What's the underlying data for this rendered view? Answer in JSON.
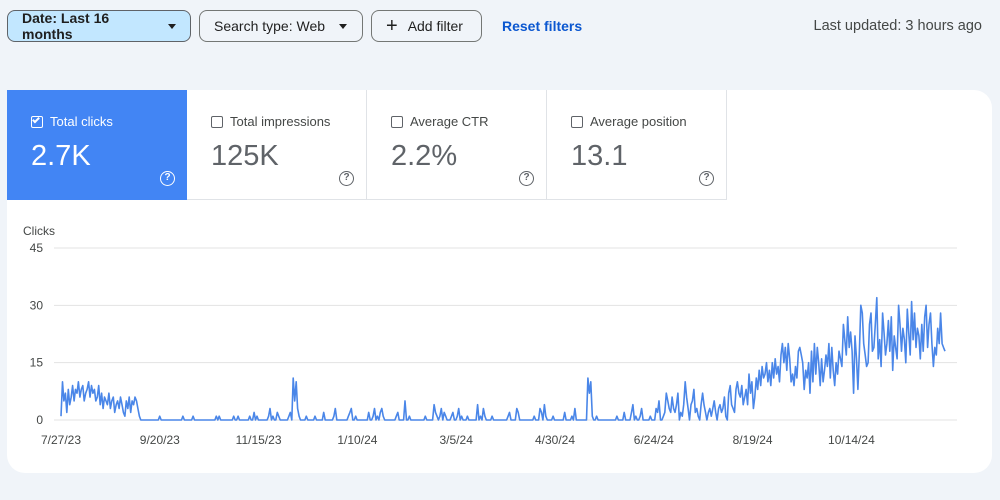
{
  "filters": {
    "date_label": "Date: Last 16 months",
    "search_type_label": "Search type: Web",
    "add_filter_label": "Add filter",
    "reset_label": "Reset filters"
  },
  "last_updated": "Last updated: 3 hours ago",
  "help_icon": "help-circle-icon",
  "metrics": [
    {
      "label": "Total clicks",
      "value": "2.7K",
      "selected": true
    },
    {
      "label": "Total impressions",
      "value": "125K",
      "selected": false
    },
    {
      "label": "Average CTR",
      "value": "2.2%",
      "selected": false
    },
    {
      "label": "Average position",
      "value": "13.1",
      "selected": false
    }
  ],
  "colors": {
    "accent": "#4285f4",
    "line": "#4a86e8",
    "chip_active": "#c2e7ff",
    "link": "#0b57d0"
  },
  "chart_data": {
    "type": "line",
    "ylabel": "Clicks",
    "ylim": [
      0,
      45
    ],
    "yticks": [
      0,
      15,
      30,
      45
    ],
    "xtick_labels": [
      "7/27/23",
      "9/20/23",
      "11/15/23",
      "1/10/24",
      "3/5/24",
      "4/30/24",
      "6/24/24",
      "8/19/24",
      "10/14/24"
    ],
    "grid": true,
    "series": [
      {
        "values": [
          1,
          10,
          5,
          7,
          2,
          8,
          4,
          6,
          9,
          5,
          8,
          7,
          10,
          6,
          8,
          9,
          5,
          7,
          8,
          10,
          6,
          9,
          7,
          8,
          5,
          6,
          9,
          4,
          7,
          3,
          6,
          5,
          4,
          7,
          3,
          5,
          6,
          2,
          4,
          5,
          3,
          6,
          4,
          2,
          1,
          5,
          3,
          6,
          2,
          5,
          4,
          6,
          5,
          3,
          1,
          0,
          0,
          0,
          0,
          0,
          0,
          0,
          0,
          0,
          0,
          0,
          0,
          0,
          1,
          0,
          0,
          0,
          0,
          0,
          0,
          0,
          0,
          0,
          0,
          0,
          0,
          0,
          0,
          0,
          1,
          0,
          0,
          0,
          0,
          0,
          0,
          1,
          0,
          0,
          0,
          0,
          0,
          0,
          0,
          0,
          0,
          0,
          0,
          0,
          0,
          0,
          0,
          1,
          0,
          1,
          0,
          0,
          0,
          0,
          0,
          0,
          0,
          0,
          0,
          1,
          0,
          0,
          1,
          0,
          0,
          0,
          0,
          0,
          0,
          0,
          1,
          0,
          0,
          2,
          0,
          1,
          0,
          0,
          0,
          0,
          0,
          0,
          0,
          1,
          3,
          0,
          1,
          0,
          0,
          2,
          1,
          0,
          0,
          0,
          0,
          0,
          0,
          1,
          2,
          0,
          11,
          5,
          10,
          3,
          1,
          0,
          0,
          0,
          0,
          1,
          0,
          0,
          0,
          0,
          0,
          1,
          0,
          0,
          0,
          0,
          0,
          2,
          0,
          0,
          0,
          0,
          0,
          0,
          1,
          3,
          0,
          0,
          0,
          0,
          0,
          0,
          0,
          0,
          1,
          2,
          3,
          0,
          0,
          1,
          0,
          0,
          0,
          0,
          0,
          0,
          0,
          0,
          2,
          0,
          0,
          1,
          3,
          0,
          1,
          0,
          2,
          3,
          1,
          0,
          0,
          0,
          0,
          0,
          0,
          0,
          0,
          1,
          2,
          0,
          0,
          0,
          0,
          5,
          0,
          0,
          1,
          0,
          0,
          0,
          0,
          0,
          0,
          0,
          0,
          0,
          0,
          1,
          0,
          0,
          0,
          0,
          0,
          4,
          2,
          1,
          0,
          1,
          3,
          0,
          2,
          1,
          0,
          0,
          0,
          1,
          2,
          0,
          0,
          1,
          3,
          0,
          1,
          0,
          0,
          0,
          1,
          0,
          0,
          0,
          0,
          0,
          0,
          4,
          0,
          1,
          0,
          3,
          1,
          0,
          0,
          0,
          0,
          1,
          0,
          0,
          0,
          0,
          0,
          0,
          0,
          0,
          0,
          0,
          1,
          2,
          0,
          0,
          0,
          0,
          3,
          2,
          0,
          0,
          0,
          0,
          0,
          0,
          0,
          0,
          0,
          0,
          1,
          0,
          0,
          0,
          3,
          2,
          0,
          4,
          1,
          0,
          0,
          0,
          0,
          1,
          0,
          0,
          0,
          0,
          0,
          0,
          0,
          2,
          0,
          0,
          0,
          0,
          1,
          0,
          3,
          0,
          0,
          0,
          0,
          0,
          0,
          0,
          0,
          11,
          7,
          10,
          1,
          0,
          0,
          1,
          0,
          0,
          0,
          0,
          0,
          0,
          0,
          0,
          0,
          0,
          0,
          0,
          0,
          1,
          0,
          0,
          0,
          0,
          2,
          0,
          0,
          0,
          0,
          2,
          4,
          0,
          1,
          0,
          0,
          1,
          3,
          0,
          0,
          0,
          0,
          0,
          1,
          0,
          0,
          0,
          3,
          2,
          5,
          0,
          0,
          1,
          2,
          7,
          5,
          3,
          2,
          6,
          3,
          2,
          4,
          7,
          0,
          2,
          1,
          4,
          10,
          6,
          3,
          0,
          4,
          5,
          8,
          2,
          3,
          1,
          0,
          4,
          7,
          4,
          2,
          0,
          2,
          3,
          1,
          3,
          5,
          2,
          0,
          3,
          4,
          2,
          3,
          6,
          1,
          0,
          7,
          9,
          4,
          3,
          2,
          8,
          10,
          7,
          6,
          9,
          4,
          6,
          8,
          4,
          12,
          7,
          10,
          3,
          6,
          11,
          8,
          13,
          9,
          14,
          11,
          12,
          15,
          10,
          13,
          9,
          15,
          11,
          16,
          12,
          14,
          10,
          17,
          20,
          15,
          19,
          13,
          20,
          16,
          10,
          12,
          9,
          14,
          11,
          18,
          19,
          17,
          15,
          8,
          13,
          11,
          15,
          7,
          18,
          10,
          20,
          12,
          19,
          15,
          9,
          16,
          10,
          13,
          17,
          14,
          20,
          11,
          19,
          13,
          9,
          15,
          12,
          18,
          16,
          14,
          25,
          21,
          17,
          27,
          19,
          23,
          18,
          7,
          22,
          16,
          8,
          18,
          30,
          28,
          20,
          17,
          14,
          15,
          25,
          28,
          18,
          19,
          25,
          32,
          16,
          21,
          14,
          28,
          23,
          17,
          20,
          26,
          18,
          27,
          13,
          22,
          19,
          16,
          30,
          25,
          18,
          24,
          21,
          15,
          29,
          23,
          17,
          31,
          21,
          28,
          19,
          24,
          22,
          16,
          25,
          18,
          27,
          30,
          19,
          25,
          28,
          20,
          14,
          19,
          17,
          24,
          20,
          28,
          20,
          19,
          18
        ]
      }
    ]
  }
}
